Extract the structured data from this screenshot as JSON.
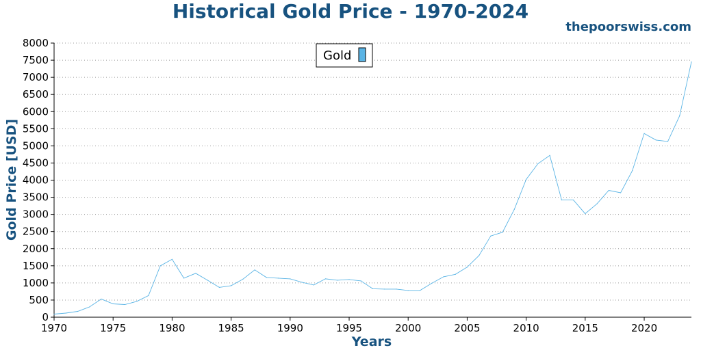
{
  "title": "Historical Gold Price - 1970-2024",
  "source": "thepoorswiss.com",
  "chart_data": {
    "type": "line",
    "xlabel": "Years",
    "ylabel": "Gold Price [USD]",
    "xlim": [
      1970,
      2024
    ],
    "ylim": [
      0,
      8000
    ],
    "x_ticks": [
      "1970",
      "1975",
      "1980",
      "1985",
      "1990",
      "1995",
      "2000",
      "2005",
      "2010",
      "2015",
      "2020"
    ],
    "y_ticks": [
      "0",
      "500",
      "1000",
      "1500",
      "2000",
      "2500",
      "3000",
      "3500",
      "4000",
      "4500",
      "5000",
      "5500",
      "6000",
      "6500",
      "7000",
      "7500",
      "8000"
    ],
    "grid": "horizontal dotted",
    "legend_position": "top-center",
    "series": [
      {
        "name": "Gold",
        "color": "#5ab4e5",
        "x": [
          1970,
          1971,
          1972,
          1973,
          1974,
          1975,
          1976,
          1977,
          1978,
          1979,
          1980,
          1981,
          1982,
          1983,
          1984,
          1985,
          1986,
          1987,
          1988,
          1989,
          1990,
          1991,
          1992,
          1993,
          1994,
          1995,
          1996,
          1997,
          1998,
          1999,
          2000,
          2001,
          2002,
          2003,
          2004,
          2005,
          2006,
          2007,
          2008,
          2009,
          2010,
          2011,
          2012,
          2013,
          2014,
          2015,
          2016,
          2017,
          2018,
          2019,
          2020,
          2021,
          2022,
          2023,
          2024
        ],
        "values": [
          90,
          120,
          170,
          300,
          530,
          390,
          370,
          460,
          630,
          1500,
          1690,
          1140,
          1280,
          1080,
          870,
          920,
          1110,
          1380,
          1160,
          1140,
          1120,
          1020,
          940,
          1120,
          1080,
          1100,
          1060,
          830,
          820,
          820,
          780,
          780,
          990,
          1180,
          1250,
          1460,
          1800,
          2370,
          2480,
          3150,
          4020,
          4480,
          4720,
          3420,
          3420,
          3020,
          3310,
          3700,
          3630,
          4280,
          5360,
          5170,
          5130,
          5880,
          7450
        ]
      }
    ]
  }
}
